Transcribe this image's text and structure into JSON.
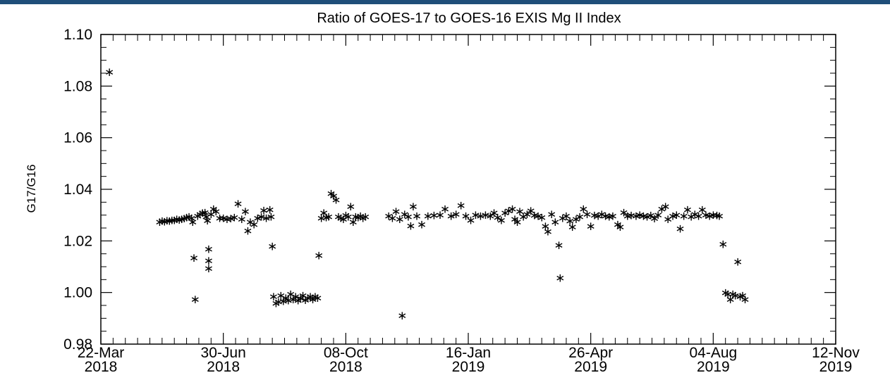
{
  "chart_data": {
    "type": "scatter",
    "title": "Ratio of GOES-17 to GOES-16 EXIS Mg II Index",
    "xlabel": "",
    "ylabel": "G17/G16",
    "marker": "star",
    "marker_color": "#000000",
    "frame_color": "#000000",
    "top_bar_color": "#1f4e79",
    "xlim": [
      "2018-03-22",
      "2019-11-12"
    ],
    "ylim": [
      0.98,
      1.1
    ],
    "y_ticks": [
      "0.98",
      "1.00",
      "1.02",
      "1.04",
      "1.06",
      "1.08",
      "1.10"
    ],
    "x_ticks": [
      {
        "date": "2018-03-22",
        "label1": "22-Mar",
        "label2": "2018"
      },
      {
        "date": "2018-06-30",
        "label1": "30-Jun",
        "label2": "2018"
      },
      {
        "date": "2018-10-08",
        "label1": "08-Oct",
        "label2": "2018"
      },
      {
        "date": "2019-01-16",
        "label1": "16-Jan",
        "label2": "2019"
      },
      {
        "date": "2019-04-26",
        "label1": "26-Apr",
        "label2": "2019"
      },
      {
        "date": "2019-08-04",
        "label1": "04-Aug",
        "label2": "2019"
      },
      {
        "date": "2019-11-12",
        "label1": "12-Nov",
        "label2": "2019"
      }
    ],
    "grid": false,
    "points": [
      {
        "x": "2018-03-29",
        "y": 1.0855
      },
      {
        "x": "2018-05-09",
        "y": 1.0275
      },
      {
        "x": "2018-05-11",
        "y": 1.0278
      },
      {
        "x": "2018-05-13",
        "y": 1.0276
      },
      {
        "x": "2018-05-15",
        "y": 1.028
      },
      {
        "x": "2018-05-17",
        "y": 1.0279
      },
      {
        "x": "2018-05-19",
        "y": 1.0282
      },
      {
        "x": "2018-05-21",
        "y": 1.0281
      },
      {
        "x": "2018-05-23",
        "y": 1.0285
      },
      {
        "x": "2018-05-25",
        "y": 1.0283
      },
      {
        "x": "2018-05-27",
        "y": 1.0286
      },
      {
        "x": "2018-05-29",
        "y": 1.0288
      },
      {
        "x": "2018-05-31",
        "y": 1.0292
      },
      {
        "x": "2018-06-02",
        "y": 1.0295
      },
      {
        "x": "2018-06-04",
        "y": 1.029
      },
      {
        "x": "2018-06-05",
        "y": 1.0275
      },
      {
        "x": "2018-06-06",
        "y": 1.0135
      },
      {
        "x": "2018-06-07",
        "y": 0.9975
      },
      {
        "x": "2018-06-09",
        "y": 1.0298
      },
      {
        "x": "2018-06-11",
        "y": 1.0305
      },
      {
        "x": "2018-06-13",
        "y": 1.031
      },
      {
        "x": "2018-06-15",
        "y": 1.0312
      },
      {
        "x": "2018-06-16",
        "y": 1.0295
      },
      {
        "x": "2018-06-17",
        "y": 1.028
      },
      {
        "x": "2018-06-18",
        "y": 1.017
      },
      {
        "x": "2018-06-18",
        "y": 1.0125
      },
      {
        "x": "2018-06-18",
        "y": 1.0095
      },
      {
        "x": "2018-06-20",
        "y": 1.0305
      },
      {
        "x": "2018-06-22",
        "y": 1.0325
      },
      {
        "x": "2018-06-24",
        "y": 1.0315
      },
      {
        "x": "2018-06-27",
        "y": 1.029
      },
      {
        "x": "2018-06-30",
        "y": 1.029
      },
      {
        "x": "2018-07-03",
        "y": 1.0285
      },
      {
        "x": "2018-07-06",
        "y": 1.0288
      },
      {
        "x": "2018-07-09",
        "y": 1.0292
      },
      {
        "x": "2018-07-12",
        "y": 1.0345
      },
      {
        "x": "2018-07-15",
        "y": 1.0285
      },
      {
        "x": "2018-07-18",
        "y": 1.0315
      },
      {
        "x": "2018-07-20",
        "y": 1.024
      },
      {
        "x": "2018-07-22",
        "y": 1.0275
      },
      {
        "x": "2018-07-25",
        "y": 1.0265
      },
      {
        "x": "2018-07-28",
        "y": 1.029
      },
      {
        "x": "2018-07-31",
        "y": 1.0295
      },
      {
        "x": "2018-08-02",
        "y": 1.032
      },
      {
        "x": "2018-08-04",
        "y": 1.029
      },
      {
        "x": "2018-08-07",
        "y": 1.0322
      },
      {
        "x": "2018-08-08",
        "y": 1.0295
      },
      {
        "x": "2018-08-09",
        "y": 1.018
      },
      {
        "x": "2018-08-10",
        "y": 0.9985
      },
      {
        "x": "2018-08-12",
        "y": 0.996
      },
      {
        "x": "2018-08-14",
        "y": 0.9965
      },
      {
        "x": "2018-08-16",
        "y": 0.999
      },
      {
        "x": "2018-08-18",
        "y": 0.9968
      },
      {
        "x": "2018-08-20",
        "y": 0.998
      },
      {
        "x": "2018-08-22",
        "y": 0.997
      },
      {
        "x": "2018-08-24",
        "y": 0.9995
      },
      {
        "x": "2018-08-26",
        "y": 0.9975
      },
      {
        "x": "2018-08-28",
        "y": 0.9985
      },
      {
        "x": "2018-08-30",
        "y": 0.997
      },
      {
        "x": "2018-09-01",
        "y": 0.9978
      },
      {
        "x": "2018-09-03",
        "y": 0.999
      },
      {
        "x": "2018-09-05",
        "y": 0.9972
      },
      {
        "x": "2018-09-07",
        "y": 0.998
      },
      {
        "x": "2018-09-09",
        "y": 0.9985
      },
      {
        "x": "2018-09-11",
        "y": 0.9975
      },
      {
        "x": "2018-09-13",
        "y": 0.9985
      },
      {
        "x": "2018-09-15",
        "y": 0.998
      },
      {
        "x": "2018-09-16",
        "y": 1.0145
      },
      {
        "x": "2018-09-18",
        "y": 1.029
      },
      {
        "x": "2018-09-20",
        "y": 1.031
      },
      {
        "x": "2018-09-22",
        "y": 1.0292
      },
      {
        "x": "2018-09-24",
        "y": 1.0295
      },
      {
        "x": "2018-09-26",
        "y": 1.0385
      },
      {
        "x": "2018-09-28",
        "y": 1.0375
      },
      {
        "x": "2018-09-30",
        "y": 1.036
      },
      {
        "x": "2018-10-02",
        "y": 1.0295
      },
      {
        "x": "2018-10-04",
        "y": 1.029
      },
      {
        "x": "2018-10-06",
        "y": 1.0285
      },
      {
        "x": "2018-10-08",
        "y": 1.03
      },
      {
        "x": "2018-10-10",
        "y": 1.0295
      },
      {
        "x": "2018-10-12",
        "y": 1.0335
      },
      {
        "x": "2018-10-14",
        "y": 1.0275
      },
      {
        "x": "2018-10-16",
        "y": 1.0295
      },
      {
        "x": "2018-10-18",
        "y": 1.0292
      },
      {
        "x": "2018-10-20",
        "y": 1.0298
      },
      {
        "x": "2018-10-22",
        "y": 1.029
      },
      {
        "x": "2018-10-24",
        "y": 1.0295
      },
      {
        "x": "2018-11-12",
        "y": 1.0298
      },
      {
        "x": "2018-11-15",
        "y": 1.029
      },
      {
        "x": "2018-11-18",
        "y": 1.0315
      },
      {
        "x": "2018-11-21",
        "y": 1.0285
      },
      {
        "x": "2018-11-23",
        "y": 0.9912
      },
      {
        "x": "2018-11-25",
        "y": 1.0305
      },
      {
        "x": "2018-11-28",
        "y": 1.0295
      },
      {
        "x": "2018-11-30",
        "y": 1.026
      },
      {
        "x": "2018-12-02",
        "y": 1.0335
      },
      {
        "x": "2018-12-05",
        "y": 1.0298
      },
      {
        "x": "2018-12-09",
        "y": 1.0265
      },
      {
        "x": "2018-12-14",
        "y": 1.0298
      },
      {
        "x": "2018-12-19",
        "y": 1.03
      },
      {
        "x": "2018-12-24",
        "y": 1.0302
      },
      {
        "x": "2018-12-28",
        "y": 1.0325
      },
      {
        "x": "2019-01-02",
        "y": 1.0298
      },
      {
        "x": "2019-01-06",
        "y": 1.0305
      },
      {
        "x": "2019-01-10",
        "y": 1.0338
      },
      {
        "x": "2019-01-14",
        "y": 1.0298
      },
      {
        "x": "2019-01-18",
        "y": 1.0282
      },
      {
        "x": "2019-01-22",
        "y": 1.0302
      },
      {
        "x": "2019-01-26",
        "y": 1.0298
      },
      {
        "x": "2019-01-30",
        "y": 1.0302
      },
      {
        "x": "2019-02-03",
        "y": 1.0298
      },
      {
        "x": "2019-02-06",
        "y": 1.031
      },
      {
        "x": "2019-02-09",
        "y": 1.0292
      },
      {
        "x": "2019-02-12",
        "y": 1.0282
      },
      {
        "x": "2019-02-15",
        "y": 1.031
      },
      {
        "x": "2019-02-18",
        "y": 1.0318
      },
      {
        "x": "2019-02-21",
        "y": 1.0325
      },
      {
        "x": "2019-02-23",
        "y": 1.0285
      },
      {
        "x": "2019-02-25",
        "y": 1.0275
      },
      {
        "x": "2019-02-27",
        "y": 1.0315
      },
      {
        "x": "2019-03-02",
        "y": 1.0295
      },
      {
        "x": "2019-03-05",
        "y": 1.0305
      },
      {
        "x": "2019-03-08",
        "y": 1.0318
      },
      {
        "x": "2019-03-11",
        "y": 1.03
      },
      {
        "x": "2019-03-14",
        "y": 1.0298
      },
      {
        "x": "2019-03-17",
        "y": 1.0292
      },
      {
        "x": "2019-03-20",
        "y": 1.0258
      },
      {
        "x": "2019-03-22",
        "y": 1.0238
      },
      {
        "x": "2019-03-25",
        "y": 1.0305
      },
      {
        "x": "2019-03-28",
        "y": 1.0275
      },
      {
        "x": "2019-03-31",
        "y": 1.0185
      },
      {
        "x": "2019-04-01",
        "y": 1.0058
      },
      {
        "x": "2019-04-03",
        "y": 1.029
      },
      {
        "x": "2019-04-06",
        "y": 1.0298
      },
      {
        "x": "2019-04-09",
        "y": 1.0278
      },
      {
        "x": "2019-04-11",
        "y": 1.0255
      },
      {
        "x": "2019-04-14",
        "y": 1.0285
      },
      {
        "x": "2019-04-17",
        "y": 1.0295
      },
      {
        "x": "2019-04-20",
        "y": 1.0325
      },
      {
        "x": "2019-04-23",
        "y": 1.0305
      },
      {
        "x": "2019-04-26",
        "y": 1.0258
      },
      {
        "x": "2019-04-29",
        "y": 1.03
      },
      {
        "x": "2019-05-02",
        "y": 1.0298
      },
      {
        "x": "2019-05-05",
        "y": 1.0305
      },
      {
        "x": "2019-05-08",
        "y": 1.0298
      },
      {
        "x": "2019-05-11",
        "y": 1.0295
      },
      {
        "x": "2019-05-14",
        "y": 1.0298
      },
      {
        "x": "2019-05-18",
        "y": 1.0265
      },
      {
        "x": "2019-05-20",
        "y": 1.0255
      },
      {
        "x": "2019-05-23",
        "y": 1.0312
      },
      {
        "x": "2019-05-26",
        "y": 1.0298
      },
      {
        "x": "2019-05-29",
        "y": 1.03
      },
      {
        "x": "2019-06-02",
        "y": 1.0298
      },
      {
        "x": "2019-06-05",
        "y": 1.0302
      },
      {
        "x": "2019-06-08",
        "y": 1.0298
      },
      {
        "x": "2019-06-11",
        "y": 1.0295
      },
      {
        "x": "2019-06-14",
        "y": 1.03
      },
      {
        "x": "2019-06-17",
        "y": 1.0288
      },
      {
        "x": "2019-06-20",
        "y": 1.0302
      },
      {
        "x": "2019-06-23",
        "y": 1.0325
      },
      {
        "x": "2019-06-26",
        "y": 1.0335
      },
      {
        "x": "2019-06-28",
        "y": 1.0285
      },
      {
        "x": "2019-07-02",
        "y": 1.0298
      },
      {
        "x": "2019-07-05",
        "y": 1.0302
      },
      {
        "x": "2019-07-08",
        "y": 1.0248
      },
      {
        "x": "2019-07-11",
        "y": 1.0298
      },
      {
        "x": "2019-07-14",
        "y": 1.0322
      },
      {
        "x": "2019-07-17",
        "y": 1.0295
      },
      {
        "x": "2019-07-20",
        "y": 1.0305
      },
      {
        "x": "2019-07-23",
        "y": 1.0298
      },
      {
        "x": "2019-07-26",
        "y": 1.0322
      },
      {
        "x": "2019-07-29",
        "y": 1.0302
      },
      {
        "x": "2019-08-01",
        "y": 1.0298
      },
      {
        "x": "2019-08-04",
        "y": 1.0302
      },
      {
        "x": "2019-08-07",
        "y": 1.03
      },
      {
        "x": "2019-08-09",
        "y": 1.0298
      },
      {
        "x": "2019-08-12",
        "y": 1.0188
      },
      {
        "x": "2019-08-14",
        "y": 1.0
      },
      {
        "x": "2019-08-16",
        "y": 0.9995
      },
      {
        "x": "2019-08-18",
        "y": 0.9975
      },
      {
        "x": "2019-08-20",
        "y": 0.9995
      },
      {
        "x": "2019-08-22",
        "y": 0.999
      },
      {
        "x": "2019-08-24",
        "y": 1.012
      },
      {
        "x": "2019-08-26",
        "y": 0.9985
      },
      {
        "x": "2019-08-28",
        "y": 0.999
      },
      {
        "x": "2019-08-30",
        "y": 0.9975
      }
    ]
  }
}
